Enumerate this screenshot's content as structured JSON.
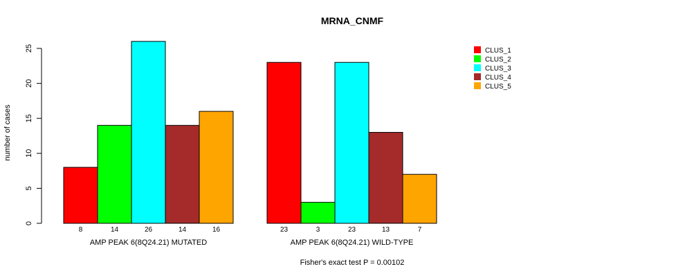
{
  "chart_data": {
    "type": "bar",
    "title": "MRNA_CNMF",
    "ylabel": "number of cases",
    "ylim": [
      0,
      26
    ],
    "yticks": [
      0,
      5,
      10,
      15,
      20,
      25
    ],
    "groups": [
      {
        "label": "AMP PEAK  6(8Q24.21) MUTATED",
        "values": [
          8,
          14,
          26,
          14,
          16
        ]
      },
      {
        "label": "AMP PEAK  6(8Q24.21) WILD-TYPE",
        "values": [
          23,
          3,
          23,
          13,
          7
        ]
      }
    ],
    "series": [
      {
        "name": "CLUS_1",
        "color": "#ff0000"
      },
      {
        "name": "CLUS_2",
        "color": "#00ff00"
      },
      {
        "name": "CLUS_3",
        "color": "#00ffff"
      },
      {
        "name": "CLUS_4",
        "color": "#a52a2a"
      },
      {
        "name": "CLUS_5",
        "color": "#ffa500"
      }
    ],
    "legend_position": "top-right",
    "grid": false,
    "footnote": "Fisher's exact test P = 0.00102"
  }
}
